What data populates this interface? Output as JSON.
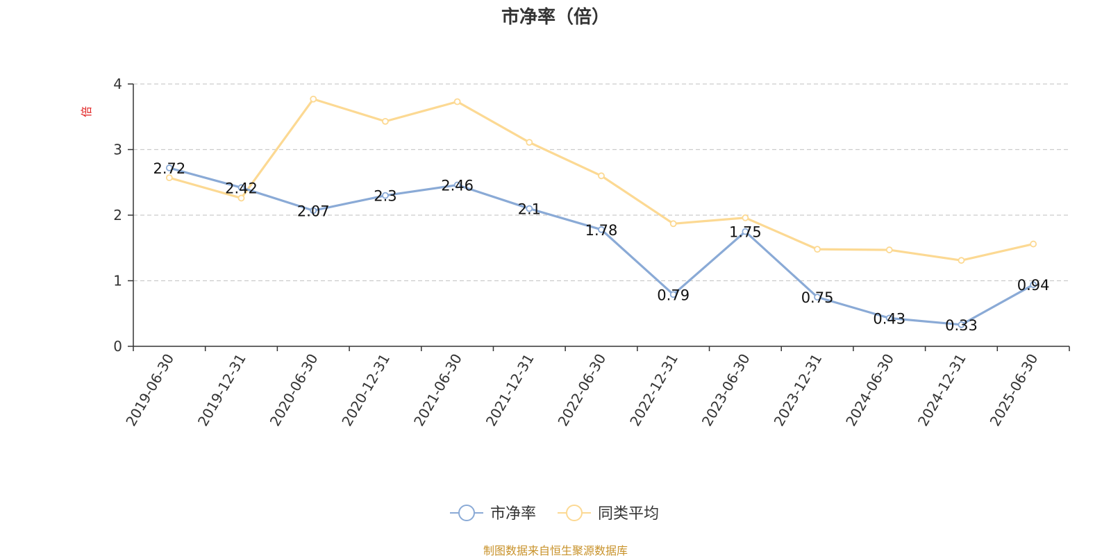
{
  "title": "市净率（倍）",
  "source": "制图数据来自恒生聚源数据库",
  "chart_data": {
    "type": "line",
    "title": "市净率（倍）",
    "ylabel": "倍",
    "xlabel": "",
    "ylim": [
      0,
      4
    ],
    "yticks": [
      "0",
      "1",
      "2",
      "3",
      "4"
    ],
    "grid": true,
    "legend_position": "bottom",
    "categories": [
      "2019-06-30",
      "2019-12-31",
      "2020-06-30",
      "2020-12-31",
      "2021-06-30",
      "2021-12-31",
      "2022-06-30",
      "2022-12-31",
      "2023-06-30",
      "2023-12-31",
      "2024-06-30",
      "2024-12-31",
      "2025-06-30"
    ],
    "series": [
      {
        "name": "市净率",
        "color": "#8aaad6",
        "values": [
          2.72,
          2.42,
          2.07,
          2.3,
          2.46,
          2.1,
          1.78,
          0.79,
          1.75,
          0.75,
          0.43,
          0.33,
          0.94
        ],
        "labels": [
          "2.72",
          "2.42",
          "2.07",
          "2.3",
          "2.46",
          "2.1",
          "1.78",
          "0.79",
          "1.75",
          "0.75",
          "0.43",
          "0.33",
          "0.94"
        ],
        "show_labels": true
      },
      {
        "name": "同类平均",
        "color": "#fcd993",
        "values": [
          2.57,
          2.26,
          3.77,
          3.43,
          3.73,
          3.11,
          2.6,
          1.87,
          1.96,
          1.48,
          1.47,
          1.31,
          1.56
        ],
        "show_labels": false
      }
    ]
  }
}
